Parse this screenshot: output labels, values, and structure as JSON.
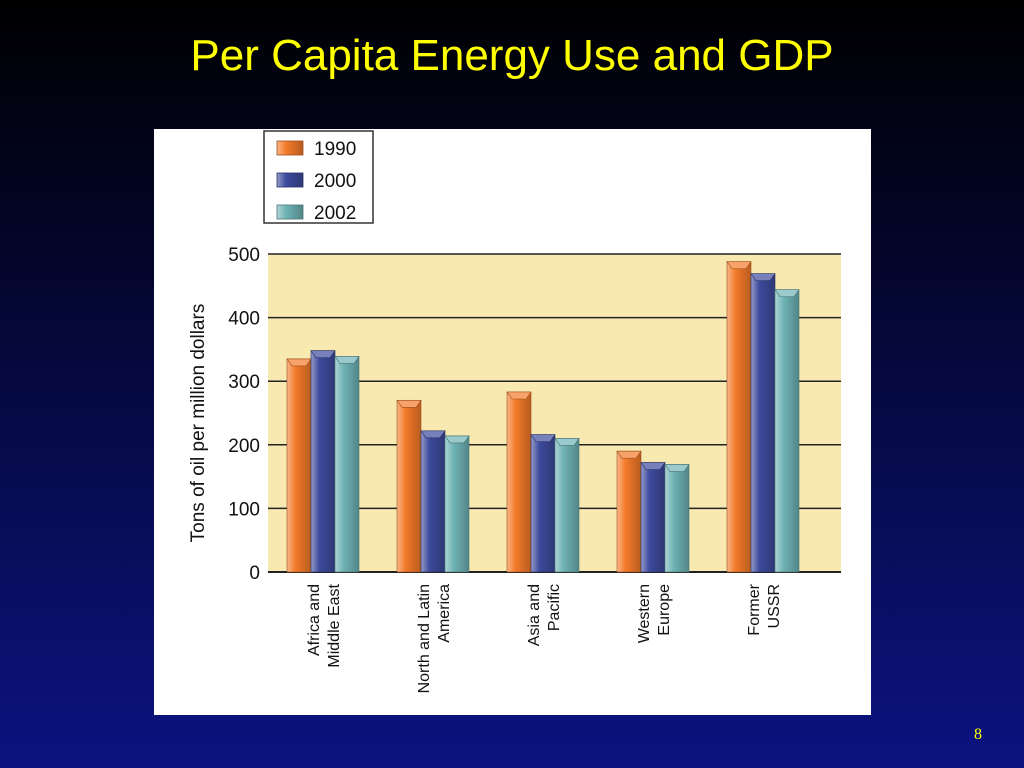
{
  "slide": {
    "title": "Per Capita Energy Use and GDP",
    "page_number": "8"
  },
  "colors": {
    "background_top": "#000000",
    "background_bottom": "#0c1380",
    "title": "#ffff00",
    "plot_area": "#f7e9b0",
    "series_1990": "#f47a2a",
    "series_2000": "#3d4a9c",
    "series_2002": "#6fb3b5"
  },
  "chart_data": {
    "type": "bar",
    "title": "",
    "xlabel": "",
    "ylabel": "Tons of oil per million dollars",
    "ylim": [
      0,
      500
    ],
    "yticks": [
      "0",
      "100",
      "200",
      "300",
      "400",
      "500"
    ],
    "grid": true,
    "legend_position": "top-left",
    "categories": [
      [
        "Africa and",
        "Middle East"
      ],
      [
        "North and Latin",
        "America"
      ],
      [
        "Asia and",
        "Pacific"
      ],
      [
        "Western",
        "Europe"
      ],
      [
        "Former",
        "USSR"
      ]
    ],
    "series": [
      {
        "name": "1990",
        "color": "#f47a2a",
        "values": [
          335,
          270,
          283,
          190,
          488
        ]
      },
      {
        "name": "2000",
        "color": "#3d4a9c",
        "values": [
          348,
          222,
          216,
          172,
          469
        ]
      },
      {
        "name": "2002",
        "color": "#6fb3b5",
        "values": [
          339,
          214,
          210,
          169,
          444
        ]
      }
    ]
  }
}
